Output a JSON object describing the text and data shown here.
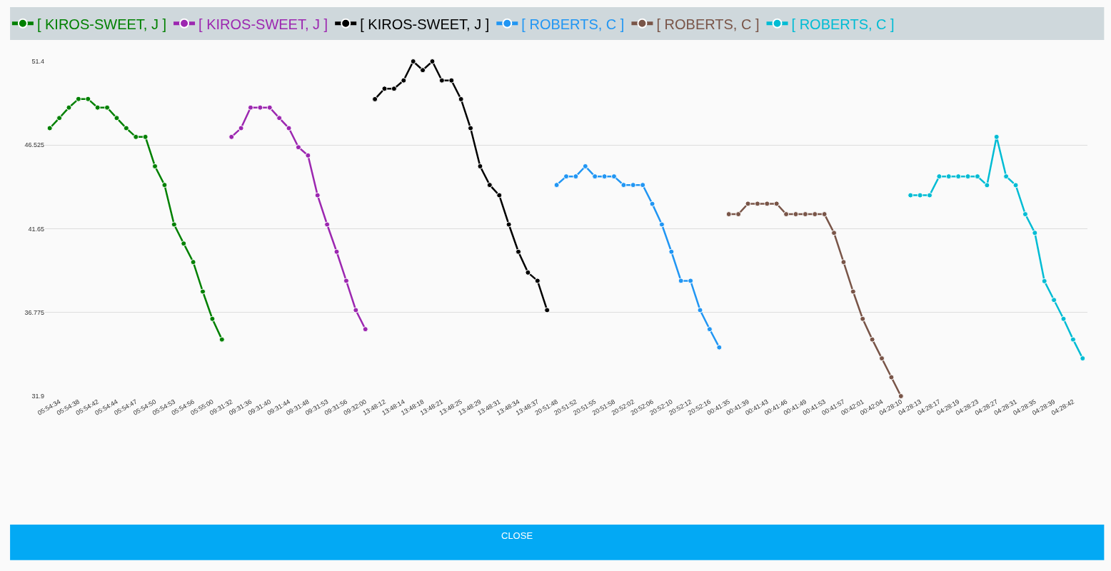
{
  "chart_data": {
    "type": "line",
    "marker": "circle",
    "line_style": "solid",
    "grid": "y",
    "legend": "top left",
    "ylim": [
      31.9,
      51.4
    ],
    "yticks": [
      31.9,
      36.775,
      41.65,
      46.525,
      51.4
    ],
    "annotations": [
      "CLOSE"
    ],
    "categories": [
      null,
      "05:54:34",
      null,
      "05:54:38",
      null,
      "05:54:42",
      null,
      "05:54:44",
      null,
      "05:54:47",
      null,
      "05:54:50",
      null,
      "05:54:53",
      null,
      "05:54:56",
      null,
      "05:55:00",
      null,
      "09:31:32",
      null,
      "09:31:36",
      null,
      "09:31:40",
      null,
      "09:31:44",
      null,
      "09:31:48",
      null,
      "09:31:53",
      null,
      "09:31:56",
      null,
      "09:32:00",
      null,
      "13:48:12",
      null,
      "13:48:14",
      null,
      "13:48:18",
      null,
      "13:48:21",
      null,
      "13:48:25",
      null,
      "13:48:29",
      null,
      "13:48:31",
      null,
      "13:48:34",
      null,
      "13:48:37",
      null,
      "20:51:48",
      null,
      "20:51:52",
      null,
      "20:51:55",
      null,
      "20:51:58",
      null,
      "20:52:02",
      null,
      "20:52:06",
      null,
      "20:52:10",
      null,
      "20:52:12",
      null,
      "20:52:16",
      null,
      "00:41:35",
      null,
      "00:41:39",
      null,
      "00:41:43",
      null,
      "00:41:46",
      null,
      "00:41:49",
      null,
      "00:41:53",
      null,
      "00:41:57",
      null,
      "00:42:01",
      null,
      "00:42:04",
      null,
      "04:28:10",
      null,
      "04:28:13",
      null,
      "04:28:17",
      null,
      "04:28:19",
      null,
      "04:28:23",
      null,
      "04:28:27",
      null,
      "04:28:31",
      null,
      "04:28:35",
      null,
      "04:28:39",
      null,
      "04:28:42",
      null
    ],
    "series": [
      {
        "name": "[ KIROS-SWEET, J ]",
        "color": "#008000",
        "values": [
          47.51,
          48.1,
          48.71,
          49.21,
          49.21,
          48.71,
          48.71,
          48.1,
          47.51,
          47.0,
          47.0,
          45.29,
          44.2,
          41.9,
          40.79,
          39.71,
          37.99,
          36.4,
          35.2,
          null,
          null,
          null,
          null,
          null,
          null,
          null,
          null,
          null,
          null,
          null,
          null,
          null,
          null,
          null,
          null,
          null,
          null,
          null,
          null,
          null,
          null,
          null,
          null,
          null,
          null,
          null,
          null,
          null,
          null,
          null,
          null,
          null,
          null,
          null,
          null,
          null,
          null,
          null,
          null,
          null,
          null,
          null,
          null,
          null,
          null,
          null,
          null,
          null,
          null,
          null,
          null,
          null,
          null,
          null,
          null,
          null,
          null,
          null,
          null,
          null,
          null,
          null,
          null,
          null,
          null,
          null,
          null,
          null,
          null,
          null,
          null,
          null,
          null,
          null,
          null,
          null,
          null,
          null,
          null,
          null,
          null,
          null,
          null,
          null,
          null,
          null,
          null,
          null,
          null
        ]
      },
      {
        "name": "[ KIROS-SWEET, J ]",
        "color": "#9c27b0",
        "values": [
          null,
          null,
          null,
          null,
          null,
          null,
          null,
          null,
          null,
          null,
          null,
          null,
          null,
          null,
          null,
          null,
          null,
          null,
          null,
          47.0,
          47.51,
          48.71,
          48.71,
          48.71,
          48.1,
          47.51,
          46.4,
          45.92,
          43.6,
          41.9,
          40.31,
          38.62,
          36.91,
          35.8,
          null,
          null,
          null,
          null,
          null,
          null,
          null,
          null,
          null,
          null,
          null,
          null,
          null,
          null,
          null,
          null,
          null,
          null,
          null,
          null,
          null,
          null,
          null,
          null,
          null,
          null,
          null,
          null,
          null,
          null,
          null,
          null,
          null,
          null,
          null,
          null,
          null,
          null,
          null,
          null,
          null,
          null,
          null,
          null,
          null,
          null,
          null,
          null,
          null,
          null,
          null,
          null,
          null,
          null,
          null,
          null,
          null,
          null,
          null,
          null,
          null,
          null,
          null,
          null,
          null,
          null,
          null,
          null,
          null,
          null,
          null,
          null,
          null,
          null,
          null
        ]
      },
      {
        "name": "[ KIROS-SWEET, J ]",
        "color": "#000000",
        "values": [
          null,
          null,
          null,
          null,
          null,
          null,
          null,
          null,
          null,
          null,
          null,
          null,
          null,
          null,
          null,
          null,
          null,
          null,
          null,
          null,
          null,
          null,
          null,
          null,
          null,
          null,
          null,
          null,
          null,
          null,
          null,
          null,
          null,
          null,
          49.2,
          49.81,
          49.81,
          50.29,
          51.4,
          50.89,
          51.4,
          50.29,
          50.29,
          49.2,
          47.51,
          45.29,
          44.2,
          43.6,
          41.9,
          40.31,
          39.1,
          38.62,
          36.91,
          null,
          null,
          null,
          null,
          null,
          null,
          null,
          null,
          null,
          null,
          null,
          null,
          null,
          null,
          null,
          null,
          null,
          null,
          null,
          null,
          null,
          null,
          null,
          null,
          null,
          null,
          null,
          null,
          null,
          null,
          null,
          null,
          null,
          null,
          null,
          null,
          null,
          null,
          null,
          null,
          null,
          null,
          null,
          null,
          null,
          null,
          null,
          null,
          null,
          null,
          null,
          null,
          null,
          null,
          null,
          null
        ]
      },
      {
        "name": "[ ROBERTS, C ]",
        "color": "#2196f3",
        "values": [
          null,
          null,
          null,
          null,
          null,
          null,
          null,
          null,
          null,
          null,
          null,
          null,
          null,
          null,
          null,
          null,
          null,
          null,
          null,
          null,
          null,
          null,
          null,
          null,
          null,
          null,
          null,
          null,
          null,
          null,
          null,
          null,
          null,
          null,
          null,
          null,
          null,
          null,
          null,
          null,
          null,
          null,
          null,
          null,
          null,
          null,
          null,
          null,
          null,
          null,
          null,
          null,
          null,
          44.2,
          44.7,
          44.7,
          45.29,
          44.7,
          44.7,
          44.7,
          44.2,
          44.2,
          44.2,
          43.1,
          41.9,
          40.31,
          38.62,
          38.62,
          36.91,
          35.8,
          34.74,
          null,
          null,
          null,
          null,
          null,
          null,
          null,
          null,
          null,
          null,
          null,
          null,
          null,
          null,
          null,
          null,
          null,
          null,
          null,
          null,
          null,
          null,
          null,
          null,
          null,
          null,
          null,
          null,
          null,
          null,
          null,
          null,
          null,
          null,
          null,
          null,
          null,
          null
        ]
      },
      {
        "name": "[ ROBERTS, C ]",
        "color": "#795548",
        "values": [
          null,
          null,
          null,
          null,
          null,
          null,
          null,
          null,
          null,
          null,
          null,
          null,
          null,
          null,
          null,
          null,
          null,
          null,
          null,
          null,
          null,
          null,
          null,
          null,
          null,
          null,
          null,
          null,
          null,
          null,
          null,
          null,
          null,
          null,
          null,
          null,
          null,
          null,
          null,
          null,
          null,
          null,
          null,
          null,
          null,
          null,
          null,
          null,
          null,
          null,
          null,
          null,
          null,
          null,
          null,
          null,
          null,
          null,
          null,
          null,
          null,
          null,
          null,
          null,
          null,
          null,
          null,
          null,
          null,
          null,
          null,
          42.5,
          42.5,
          43.11,
          43.11,
          43.11,
          43.11,
          42.5,
          42.5,
          42.5,
          42.5,
          42.5,
          41.41,
          39.71,
          37.99,
          36.4,
          35.2,
          34.1,
          33.0,
          31.9,
          null,
          null,
          null,
          null,
          null,
          null,
          null,
          null,
          null,
          null,
          null,
          null,
          null,
          null,
          null,
          null,
          null,
          null,
          null
        ]
      },
      {
        "name": "[ ROBERTS, C ]",
        "color": "#00bcd4",
        "values": [
          null,
          null,
          null,
          null,
          null,
          null,
          null,
          null,
          null,
          null,
          null,
          null,
          null,
          null,
          null,
          null,
          null,
          null,
          null,
          null,
          null,
          null,
          null,
          null,
          null,
          null,
          null,
          null,
          null,
          null,
          null,
          null,
          null,
          null,
          null,
          null,
          null,
          null,
          null,
          null,
          null,
          null,
          null,
          null,
          null,
          null,
          null,
          null,
          null,
          null,
          null,
          null,
          null,
          null,
          null,
          null,
          null,
          null,
          null,
          null,
          null,
          null,
          null,
          null,
          null,
          null,
          null,
          null,
          null,
          null,
          null,
          null,
          null,
          null,
          null,
          null,
          null,
          null,
          null,
          null,
          null,
          null,
          null,
          null,
          null,
          null,
          null,
          null,
          null,
          null,
          43.6,
          43.6,
          43.6,
          44.7,
          44.7,
          44.7,
          44.7,
          44.7,
          44.19,
          47.0,
          44.7,
          44.19,
          42.5,
          41.41,
          38.6,
          37.5,
          36.4,
          35.2,
          34.1
        ]
      }
    ]
  }
}
